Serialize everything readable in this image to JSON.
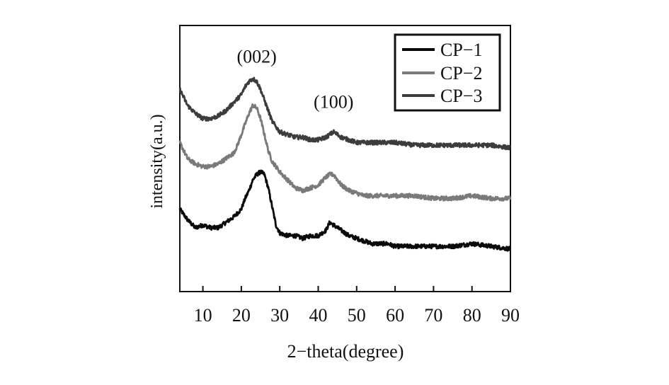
{
  "chart_data": {
    "type": "line",
    "title": "",
    "xlabel": "2−theta(degree)",
    "ylabel": "intensity(a.u.)",
    "xlim": [
      4,
      90
    ],
    "ylim": [
      0,
      100
    ],
    "x_ticks": [
      "10",
      "20",
      "30",
      "40",
      "50",
      "60",
      "70",
      "80",
      "90"
    ],
    "grid": false,
    "legend_position": "top-right",
    "annotations": [
      {
        "text": "(002)",
        "x": 24,
        "y": 86
      },
      {
        "text": "(100)",
        "x": 44,
        "y": 69
      }
    ],
    "series": [
      {
        "name": "CP−1",
        "color": "#0a0a0a",
        "x": [
          4,
          6,
          8,
          10,
          12,
          14,
          16,
          18,
          20,
          21,
          22,
          23,
          24,
          25,
          26,
          27,
          28,
          29,
          30,
          32,
          34,
          36,
          38,
          40,
          42,
          43,
          44,
          45,
          46,
          48,
          50,
          52,
          54,
          56,
          58,
          60,
          65,
          70,
          75,
          80,
          85,
          90
        ],
        "values": [
          31,
          27,
          24,
          25,
          24,
          24,
          26,
          28,
          31,
          35,
          38,
          42,
          44,
          45,
          44,
          39,
          32,
          25,
          22,
          21,
          21,
          20,
          21,
          21,
          23,
          26,
          25,
          24,
          23,
          21,
          20,
          19,
          18,
          18,
          18,
          17,
          17,
          17,
          17,
          18,
          17,
          16
        ]
      },
      {
        "name": "CP−2",
        "color": "#7a7a7a",
        "x": [
          4,
          6,
          8,
          10,
          12,
          14,
          16,
          18,
          19,
          20,
          21,
          22,
          23,
          24,
          25,
          26,
          27,
          28,
          29,
          30,
          32,
          34,
          36,
          38,
          40,
          42,
          43,
          44,
          45,
          46,
          48,
          50,
          52,
          55,
          60,
          65,
          70,
          75,
          80,
          85,
          90
        ],
        "values": [
          56,
          50,
          48,
          47,
          47,
          48,
          50,
          52,
          55,
          59,
          63,
          67,
          70,
          69,
          65,
          59,
          53,
          49,
          47,
          45,
          42,
          39,
          38,
          39,
          40,
          43,
          44,
          44,
          42,
          40,
          38,
          37,
          36,
          36,
          36,
          36,
          35,
          35,
          36,
          35,
          35
        ]
      },
      {
        "name": "CP−3",
        "color": "#3c3c3c",
        "x": [
          4,
          6,
          8,
          10,
          12,
          14,
          16,
          18,
          20,
          21,
          22,
          23,
          24,
          25,
          26,
          27,
          28,
          30,
          32,
          34,
          36,
          38,
          40,
          42,
          43,
          44,
          45,
          46,
          48,
          50,
          55,
          60,
          65,
          70,
          75,
          80,
          85,
          90
        ],
        "values": [
          76,
          70,
          67,
          65,
          65,
          66,
          68,
          71,
          74,
          77,
          79,
          80,
          79,
          76,
          72,
          68,
          64,
          60,
          59,
          58,
          58,
          57,
          57,
          58,
          59,
          60,
          59,
          58,
          57,
          56,
          56,
          56,
          55,
          55,
          55,
          55,
          55,
          54
        ]
      }
    ]
  }
}
